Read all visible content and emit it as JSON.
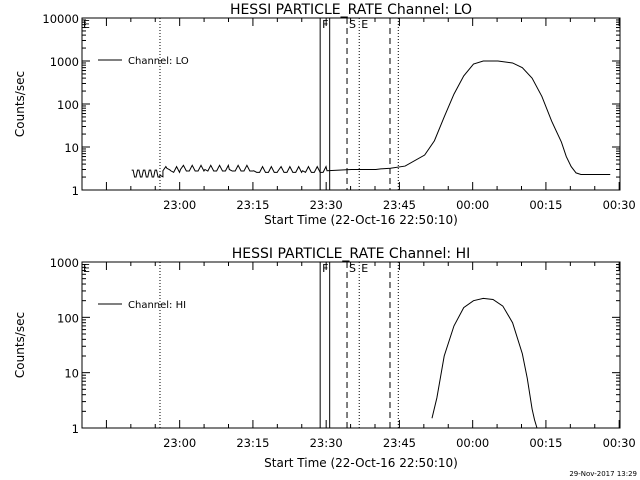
{
  "chart_data": [
    {
      "type": "line",
      "title": "HESSI PARTICLE_RATE Channel: LO",
      "xlabel": "Start Time (22-Oct-16 22:50:10)",
      "ylabel": "Counts/sec",
      "yscale": "log",
      "ylim": [
        1,
        10000
      ],
      "yticks": [
        1,
        10,
        100,
        1000,
        10000
      ],
      "ytick_labels": [
        "1",
        "10",
        "100",
        "1000",
        "10000"
      ],
      "xlim_minutes": [
        -10.17,
        100
      ],
      "xtick_minutes": [
        9.83,
        24.83,
        39.83,
        54.83,
        69.83,
        84.83,
        99.83
      ],
      "xtick_labels": [
        "23:00",
        "23:15",
        "23:30",
        "23:45",
        "00:00",
        "00:15",
        "00:30"
      ],
      "legend_label": "Channel: LO",
      "legend_position": "top-left",
      "series": [
        {
          "name": "Channel: LO",
          "x_minutes": [
            0,
            5.64,
            5.8,
            6.4,
            7.2,
            8.0,
            10,
            15,
            20,
            25,
            30,
            35,
            40,
            45,
            50,
            51,
            53,
            56,
            60,
            62,
            64,
            66,
            68,
            70,
            72,
            75,
            78,
            80,
            82,
            84,
            86,
            88,
            89,
            90,
            91,
            92,
            93,
            94,
            95,
            95.5,
            96,
            98
          ],
          "y": [
            2.2,
            2.2,
            2.2,
            2.8,
            3.2,
            2.8,
            3.0,
            3.0,
            3.0,
            2.8,
            2.8,
            2.8,
            2.8,
            3.0,
            3.0,
            3.1,
            3.2,
            3.6,
            6.5,
            14,
            50,
            170,
            450,
            850,
            1000,
            1000,
            900,
            700,
            400,
            150,
            40,
            13,
            6,
            3.5,
            2.5,
            2.3,
            2.3,
            2.3,
            2.3,
            2.3,
            2.3,
            2.3
          ],
          "fluctuating_region_minutes": [
            0,
            5.8
          ]
        }
      ],
      "vertical_markers": [
        {
          "minute": 5.8,
          "style": "dotted",
          "label": ""
        },
        {
          "minute": 38.6,
          "style": "solid",
          "label": "F"
        },
        {
          "minute": 40.55,
          "style": "solid",
          "label": ""
        },
        {
          "minute": 44.1,
          "style": "dashed",
          "label": "S"
        },
        {
          "minute": 46.6,
          "style": "dotted",
          "label": "E"
        },
        {
          "minute": 52.9,
          "style": "dashed",
          "label": ""
        },
        {
          "minute": 54.6,
          "style": "dotted",
          "label": ""
        }
      ],
      "left_marker_label": "E"
    },
    {
      "type": "line",
      "title": "HESSI PARTICLE_RATE Channel: HI",
      "xlabel": "Start Time (22-Oct-16 22:50:10)",
      "ylabel": "Counts/sec",
      "yscale": "log",
      "ylim": [
        1,
        1000
      ],
      "yticks": [
        1,
        10,
        100,
        1000
      ],
      "ytick_labels": [
        "1",
        "10",
        "100",
        "1000"
      ],
      "xlim_minutes": [
        -10.17,
        100
      ],
      "xtick_minutes": [
        9.83,
        24.83,
        39.83,
        54.83,
        69.83,
        84.83,
        99.83
      ],
      "xtick_labels": [
        "23:00",
        "23:15",
        "23:30",
        "23:45",
        "00:00",
        "00:15",
        "00:30"
      ],
      "legend_label": "Channel: HI",
      "legend_position": "top-left",
      "series": [
        {
          "name": "Channel: HI",
          "x_minutes": [
            61.5,
            62.5,
            64,
            66,
            68,
            70,
            72,
            74,
            76,
            78,
            80,
            81,
            82,
            82.5,
            83
          ],
          "y": [
            1.5,
            3.5,
            20,
            70,
            150,
            200,
            220,
            210,
            160,
            80,
            22,
            8,
            2.2,
            1.4,
            1.0
          ]
        }
      ],
      "vertical_markers": [
        {
          "minute": 5.8,
          "style": "dotted",
          "label": ""
        },
        {
          "minute": 38.6,
          "style": "solid",
          "label": "F"
        },
        {
          "minute": 40.55,
          "style": "solid",
          "label": ""
        },
        {
          "minute": 44.1,
          "style": "dashed",
          "label": "S"
        },
        {
          "minute": 46.6,
          "style": "dotted",
          "label": "E"
        },
        {
          "minute": 52.9,
          "style": "dashed",
          "label": ""
        },
        {
          "minute": 54.6,
          "style": "dotted",
          "label": ""
        }
      ],
      "left_marker_label": "E"
    }
  ],
  "footer": {
    "timestamp": "29-Nov-2017 13:29"
  }
}
